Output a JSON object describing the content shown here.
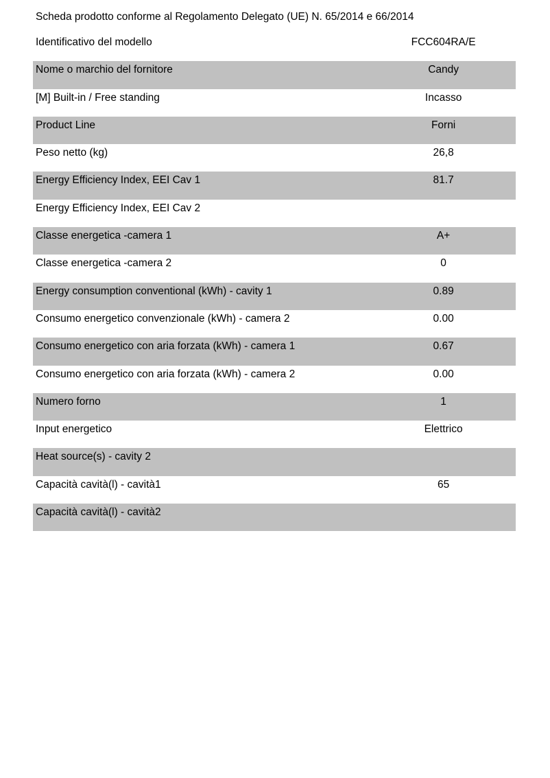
{
  "title": "Scheda prodotto conforme al Regolamento Delegato (UE) N. 65/2014 e 66/2014",
  "shade_color": "#c0c0c0",
  "rows": [
    {
      "label": "Identificativo del modello",
      "value": "FCC604RA/E"
    },
    {
      "label": "Nome o marchio del fornitore",
      "value": "Candy"
    },
    {
      "label": "[M] Built-in / Free standing",
      "value": "Incasso"
    },
    {
      "label": "Product Line",
      "value": "Forni"
    },
    {
      "label": "Peso netto (kg)",
      "value": "26,8"
    },
    {
      "label": "Energy Efficiency Index, EEI Cav 1",
      "value": "81.7"
    },
    {
      "label": "Energy Efficiency Index, EEI Cav 2",
      "value": ""
    },
    {
      "label": "Classe energetica -camera 1",
      "value": "A+"
    },
    {
      "label": "Classe energetica -camera 2",
      "value": "0"
    },
    {
      "label": "Energy consumption conventional (kWh) - cavity 1",
      "value": "0.89"
    },
    {
      "label": "Consumo energetico convenzionale (kWh) - camera 2",
      "value": "0.00"
    },
    {
      "label": "Consumo energetico con aria forzata (kWh) - camera 1",
      "value": "0.67"
    },
    {
      "label": "Consumo energetico con aria forzata (kWh) - camera 2",
      "value": "0.00"
    },
    {
      "label": "Numero forno",
      "value": "1"
    },
    {
      "label": "Input energetico",
      "value": "Elettrico"
    },
    {
      "label": "Heat source(s) - cavity 2",
      "value": ""
    },
    {
      "label": "Capacità cavità(l) - cavità1",
      "value": "65"
    },
    {
      "label": "Capacità cavità(l) - cavità2",
      "value": ""
    }
  ]
}
